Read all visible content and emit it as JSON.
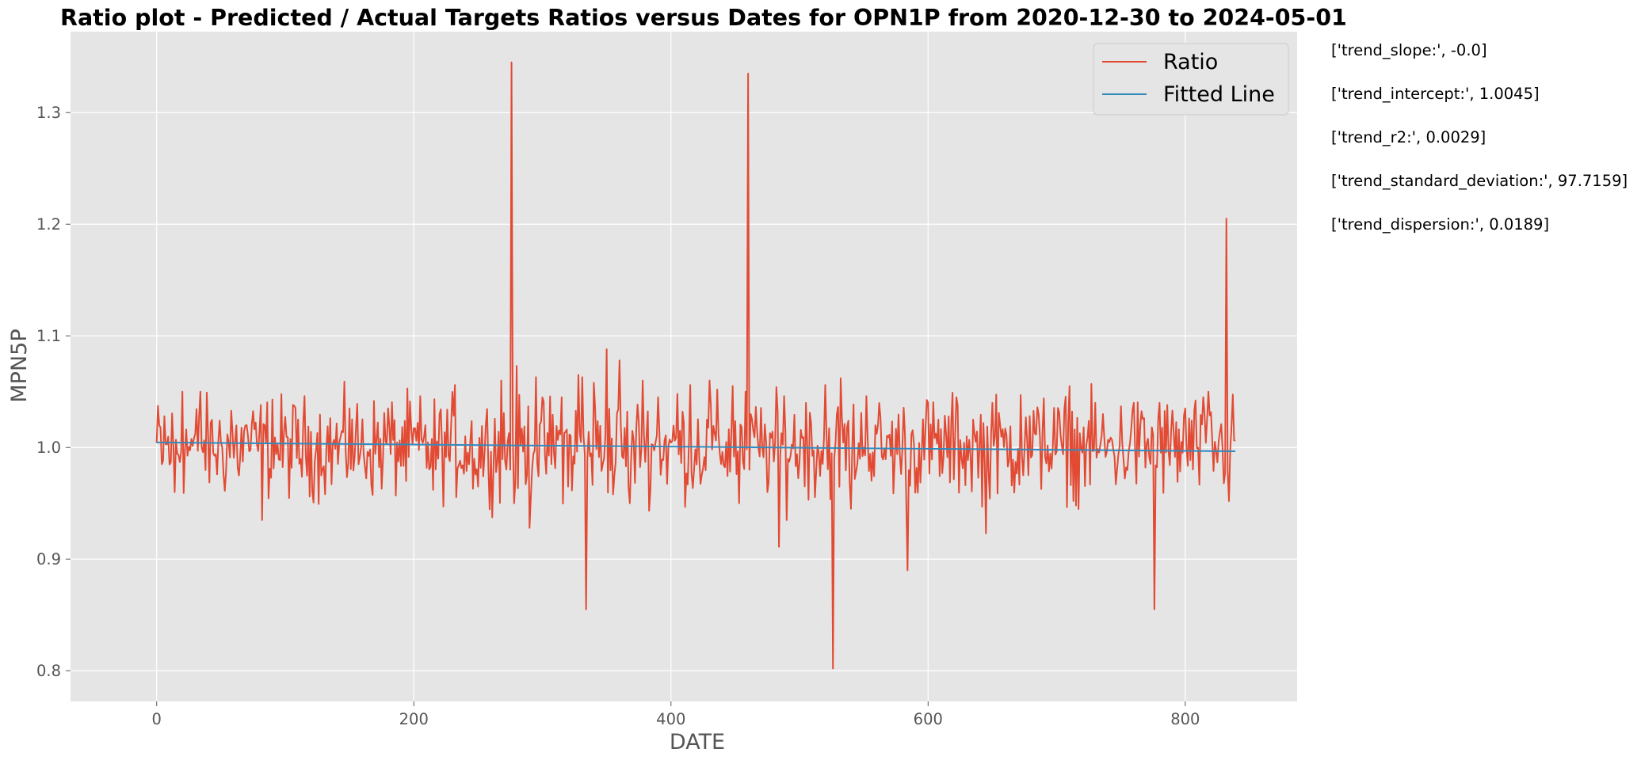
{
  "chart_data": {
    "type": "line",
    "title": "Ratio plot - Predicted / Actual Targets Ratios versus Dates for OPN1P from 2020-12-30 to 2024-05-01",
    "xlabel": "DATE",
    "ylabel": "MPN5P",
    "xlim": [
      -67,
      887
    ],
    "ylim": [
      0.7725,
      1.3725
    ],
    "xticks": [
      0,
      200,
      400,
      600,
      800
    ],
    "xtick_labels": [
      "0",
      "200",
      "400",
      "600",
      "800"
    ],
    "yticks": [
      0.8,
      0.9,
      1.0,
      1.1,
      1.2,
      1.3
    ],
    "ytick_labels": [
      "0.8",
      "0.9",
      "1.0",
      "1.1",
      "1.2",
      "1.3"
    ],
    "grid": true,
    "legend_position": "top-right",
    "n_points": 840,
    "baseline": 1.0,
    "noise_amplitude": 0.022,
    "series": [
      {
        "name": "Ratio",
        "color": "#e24a33",
        "spikes": [
          [
            2,
            1.02
          ],
          [
            4,
            0.985
          ],
          [
            6,
            1.028
          ],
          [
            14,
            0.96
          ],
          [
            20,
            1.05
          ],
          [
            34,
            1.05
          ],
          [
            58,
            1.033
          ],
          [
            70,
            1.02
          ],
          [
            82,
            0.935
          ],
          [
            90,
            1.043
          ],
          [
            150,
            1.035
          ],
          [
            180,
            1.035
          ],
          [
            205,
            1.046
          ],
          [
            215,
            0.962
          ],
          [
            232,
            1.056
          ],
          [
            250,
            0.965
          ],
          [
            268,
            1.06
          ],
          [
            275,
            0.98
          ],
          [
            276,
            1.345
          ],
          [
            277,
            1.01
          ],
          [
            278,
            0.95
          ],
          [
            280,
            1.073
          ],
          [
            290,
            0.928
          ],
          [
            295,
            1.063
          ],
          [
            315,
            1.045
          ],
          [
            320,
            0.965
          ],
          [
            328,
            1.065
          ],
          [
            331,
            1.063
          ],
          [
            334,
            0.855
          ],
          [
            335,
            0.99
          ],
          [
            340,
            1.058
          ],
          [
            350,
            1.088
          ],
          [
            355,
            0.958
          ],
          [
            360,
            1.078
          ],
          [
            368,
            0.95
          ],
          [
            378,
            1.06
          ],
          [
            390,
            1.045
          ],
          [
            405,
            1.048
          ],
          [
            415,
            1.056
          ],
          [
            430,
            1.06
          ],
          [
            448,
            1.055
          ],
          [
            453,
            0.95
          ],
          [
            458,
            1.05
          ],
          [
            460,
            1.335
          ],
          [
            461,
            0.98
          ],
          [
            462,
            1.03
          ],
          [
            484,
            0.911
          ],
          [
            488,
            1.046
          ],
          [
            490,
            0.935
          ],
          [
            505,
            1.04
          ],
          [
            520,
            1.056
          ],
          [
            526,
            0.802
          ],
          [
            527,
            0.99
          ],
          [
            532,
            1.062
          ],
          [
            540,
            0.945
          ],
          [
            552,
            1.046
          ],
          [
            584,
            0.89
          ],
          [
            600,
            1.04
          ],
          [
            622,
            1.045
          ],
          [
            645,
            0.923
          ],
          [
            650,
            1.04
          ],
          [
            672,
            1.047
          ],
          [
            690,
            1.044
          ],
          [
            710,
            1.055
          ],
          [
            715,
            0.948
          ],
          [
            730,
            1.04
          ],
          [
            760,
            1.04
          ],
          [
            776,
            0.855
          ],
          [
            780,
            1.04
          ],
          [
            800,
            1.035
          ],
          [
            818,
            1.05
          ],
          [
            832,
            1.205
          ],
          [
            834,
            0.952
          ],
          [
            836,
            1.02
          ],
          [
            839,
            1.006
          ]
        ]
      },
      {
        "name": "Fitted Line",
        "color": "#348abd",
        "x": [
          0,
          839
        ],
        "y": [
          1.0045,
          0.9966
        ]
      }
    ]
  },
  "stats": [
    "['trend_slope:', -0.0]",
    "['trend_intercept:', 1.0045]",
    "['trend_r2:', 0.0029]",
    "['trend_standard_deviation:', 97.7159]",
    "['trend_dispersion:', 0.0189]"
  ]
}
